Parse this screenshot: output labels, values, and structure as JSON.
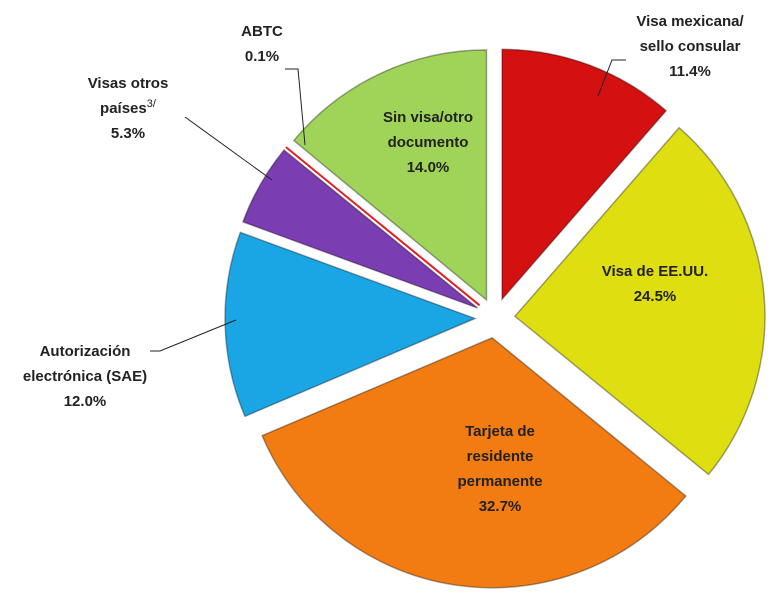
{
  "chart_data": {
    "type": "pie",
    "categories": [
      [
        "Visa mexicana/",
        "sello consular"
      ],
      [
        "Visa de EE.UU."
      ],
      [
        "Tarjeta de",
        "residente",
        "permanente"
      ],
      [
        "Autorización",
        "electrónica (SAE)"
      ],
      [
        "Visas otros",
        "países"
      ],
      [
        "ABTC"
      ],
      [
        "Sin visa/otro",
        "documento"
      ]
    ],
    "category_notes": [
      null,
      null,
      null,
      null,
      "3/",
      null,
      null
    ],
    "values": [
      11.4,
      24.5,
      32.7,
      12.0,
      5.3,
      0.1,
      14.0
    ],
    "value_labels": [
      "11.4%",
      "24.5%",
      "32.7%",
      "12.0%",
      "5.3%",
      "0.1%",
      "14.0%"
    ],
    "colors": [
      "#d41010",
      "#dede10",
      "#f27c12",
      "#1aa6e4",
      "#7b3db2",
      "#e02020",
      "#a0d458"
    ]
  }
}
